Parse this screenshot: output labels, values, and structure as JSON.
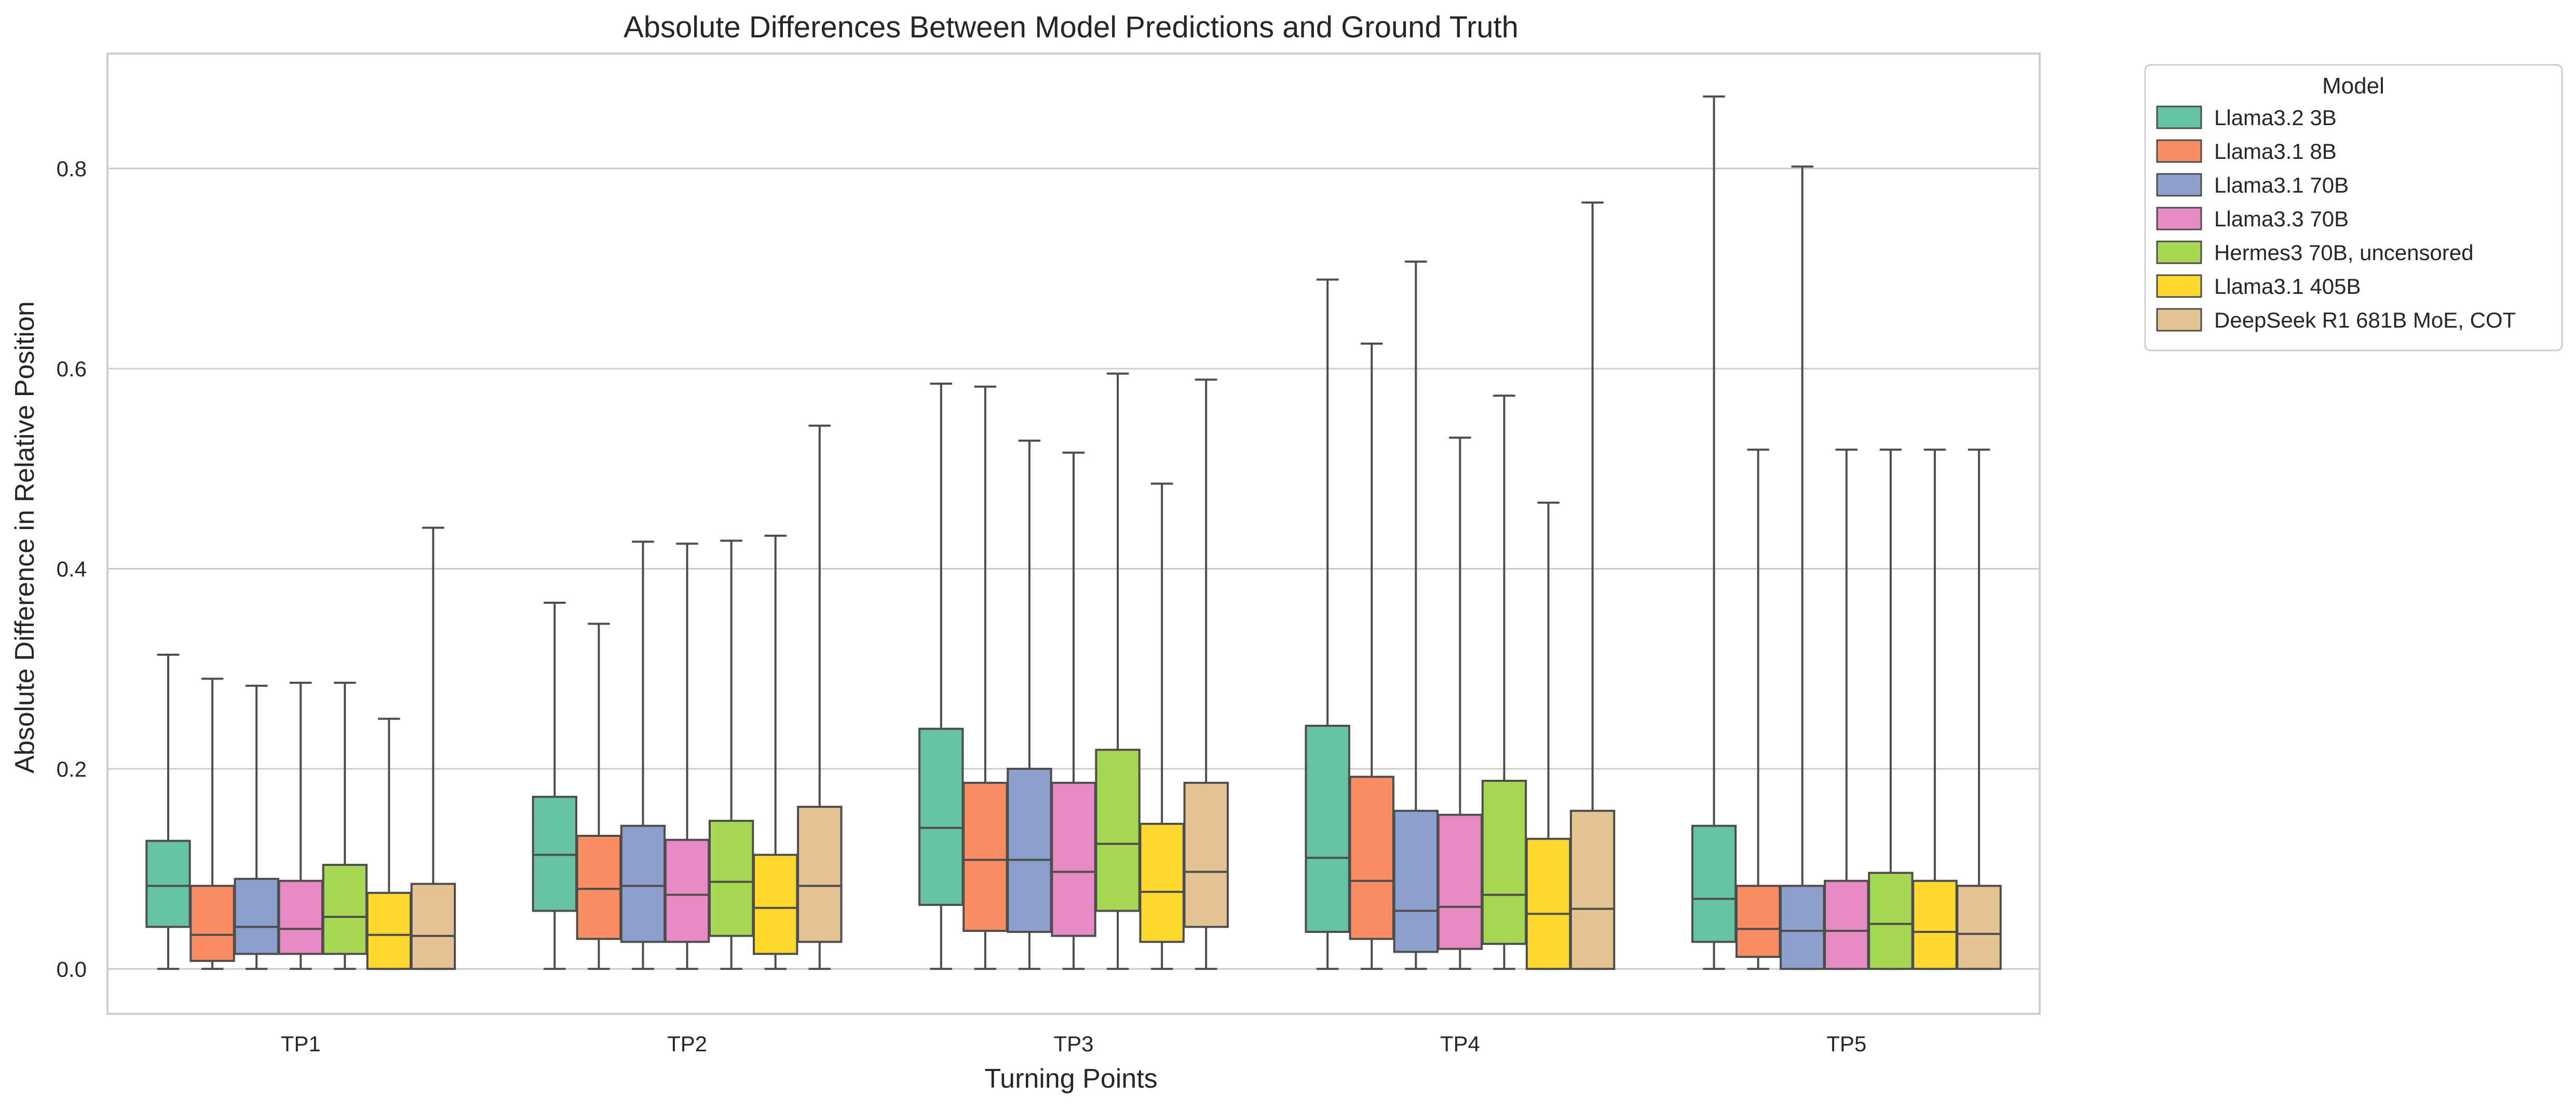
{
  "chart_data": {
    "type": "box",
    "title": "Absolute Differences Between Model Predictions and Ground Truth",
    "xlabel": "Turning Points",
    "ylabel": "Absolute Difference in Relative Position",
    "categories": [
      "TP1",
      "TP2",
      "TP3",
      "TP4",
      "TP5"
    ],
    "ylim": [
      -0.045,
      0.915
    ],
    "yticks": [
      0.0,
      0.2,
      0.4,
      0.6,
      0.8
    ],
    "ytick_labels": [
      "0.0",
      "0.2",
      "0.4",
      "0.6",
      "0.8"
    ],
    "grid": "horizontal",
    "legend": {
      "title": "Model",
      "placement": "outside top-right"
    },
    "series": [
      {
        "name": "Llama3.2 3B",
        "color": "#66c2a5",
        "boxes": [
          {
            "min": 0.0,
            "q1": 0.042,
            "median": 0.083,
            "q3": 0.128,
            "max": 0.314
          },
          {
            "min": 0.0,
            "q1": 0.058,
            "median": 0.114,
            "q3": 0.172,
            "max": 0.366
          },
          {
            "min": 0.0,
            "q1": 0.064,
            "median": 0.141,
            "q3": 0.24,
            "max": 0.585
          },
          {
            "min": 0.0,
            "q1": 0.037,
            "median": 0.111,
            "q3": 0.243,
            "max": 0.689
          },
          {
            "min": 0.0,
            "q1": 0.027,
            "median": 0.07,
            "q3": 0.143,
            "max": 0.872
          }
        ]
      },
      {
        "name": "Llama3.1 8B",
        "color": "#fc8d62",
        "boxes": [
          {
            "min": 0.0,
            "q1": 0.008,
            "median": 0.034,
            "q3": 0.083,
            "max": 0.29
          },
          {
            "min": 0.0,
            "q1": 0.03,
            "median": 0.08,
            "q3": 0.133,
            "max": 0.345
          },
          {
            "min": 0.0,
            "q1": 0.038,
            "median": 0.109,
            "q3": 0.186,
            "max": 0.582
          },
          {
            "min": 0.0,
            "q1": 0.03,
            "median": 0.088,
            "q3": 0.192,
            "max": 0.625
          },
          {
            "min": 0.0,
            "q1": 0.012,
            "median": 0.04,
            "q3": 0.083,
            "max": 0.519
          }
        ]
      },
      {
        "name": "Llama3.1 70B",
        "color": "#8da0cb",
        "boxes": [
          {
            "min": 0.0,
            "q1": 0.015,
            "median": 0.042,
            "q3": 0.09,
            "max": 0.283
          },
          {
            "min": 0.0,
            "q1": 0.027,
            "median": 0.083,
            "q3": 0.143,
            "max": 0.427
          },
          {
            "min": 0.0,
            "q1": 0.037,
            "median": 0.109,
            "q3": 0.2,
            "max": 0.528
          },
          {
            "min": 0.0,
            "q1": 0.017,
            "median": 0.058,
            "q3": 0.158,
            "max": 0.707
          },
          {
            "min": 0.0,
            "q1": 0.0,
            "median": 0.038,
            "q3": 0.083,
            "max": 0.802
          }
        ]
      },
      {
        "name": "Llama3.3 70B",
        "color": "#e78ac3",
        "boxes": [
          {
            "min": 0.0,
            "q1": 0.015,
            "median": 0.04,
            "q3": 0.088,
            "max": 0.286
          },
          {
            "min": 0.0,
            "q1": 0.027,
            "median": 0.074,
            "q3": 0.129,
            "max": 0.425
          },
          {
            "min": 0.0,
            "q1": 0.033,
            "median": 0.097,
            "q3": 0.186,
            "max": 0.516
          },
          {
            "min": 0.0,
            "q1": 0.02,
            "median": 0.062,
            "q3": 0.154,
            "max": 0.531
          },
          {
            "min": 0.0,
            "q1": 0.0,
            "median": 0.038,
            "q3": 0.088,
            "max": 0.519
          }
        ]
      },
      {
        "name": "Hermes3 70B, uncensored",
        "color": "#a6d854",
        "boxes": [
          {
            "min": 0.0,
            "q1": 0.015,
            "median": 0.052,
            "q3": 0.104,
            "max": 0.286
          },
          {
            "min": 0.0,
            "q1": 0.033,
            "median": 0.087,
            "q3": 0.148,
            "max": 0.428
          },
          {
            "min": 0.0,
            "q1": 0.058,
            "median": 0.125,
            "q3": 0.219,
            "max": 0.595
          },
          {
            "min": 0.0,
            "q1": 0.025,
            "median": 0.074,
            "q3": 0.188,
            "max": 0.573
          },
          {
            "min": 0.0,
            "q1": 0.0,
            "median": 0.045,
            "q3": 0.096,
            "max": 0.519
          }
        ]
      },
      {
        "name": "Llama3.1 405B",
        "color": "#ffd92f",
        "boxes": [
          {
            "min": 0.0,
            "q1": 0.0,
            "median": 0.034,
            "q3": 0.076,
            "max": 0.25
          },
          {
            "min": 0.0,
            "q1": 0.015,
            "median": 0.061,
            "q3": 0.114,
            "max": 0.433
          },
          {
            "min": 0.0,
            "q1": 0.027,
            "median": 0.077,
            "q3": 0.145,
            "max": 0.485
          },
          {
            "min": 0.0,
            "q1": 0.0,
            "median": 0.055,
            "q3": 0.13,
            "max": 0.466
          },
          {
            "min": 0.0,
            "q1": 0.0,
            "median": 0.037,
            "q3": 0.088,
            "max": 0.519
          }
        ]
      },
      {
        "name": "DeepSeek R1 681B MoE, COT",
        "color": "#e5c494",
        "boxes": [
          {
            "min": 0.0,
            "q1": 0.0,
            "median": 0.033,
            "q3": 0.085,
            "max": 0.441
          },
          {
            "min": 0.0,
            "q1": 0.027,
            "median": 0.083,
            "q3": 0.162,
            "max": 0.543
          },
          {
            "min": 0.0,
            "q1": 0.042,
            "median": 0.097,
            "q3": 0.186,
            "max": 0.589
          },
          {
            "min": 0.0,
            "q1": 0.0,
            "median": 0.06,
            "q3": 0.158,
            "max": 0.766
          },
          {
            "min": 0.0,
            "q1": 0.0,
            "median": 0.035,
            "q3": 0.083,
            "max": 0.519
          }
        ]
      }
    ]
  }
}
